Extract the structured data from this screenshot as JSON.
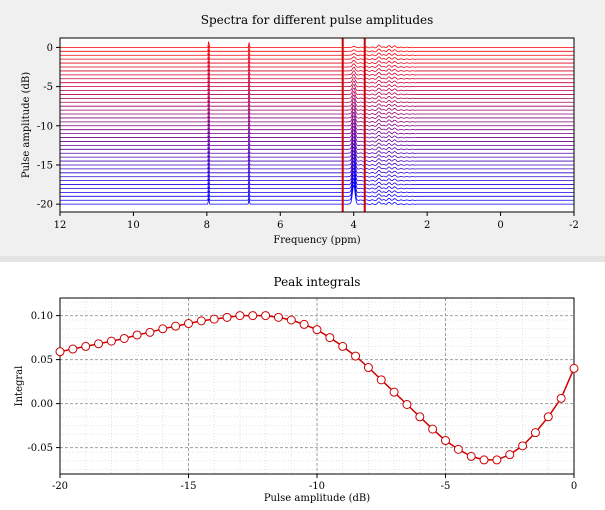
{
  "chart_data": [
    {
      "type": "line",
      "title": "Spectra for different pulse amplitudes",
      "xlabel": "Frequency (ppm)",
      "ylabel": "Pulse amplitude (dB)",
      "xlim": [
        12,
        -2
      ],
      "ylim": [
        -21,
        1.2
      ],
      "x_reversed": true,
      "xticks": [
        12,
        10,
        8,
        6,
        4,
        2,
        0,
        -2
      ],
      "yticks": [
        0,
        -5,
        -10,
        -15,
        -20
      ],
      "trace_offsets_db": [
        0,
        -0.5,
        -1,
        -1.5,
        -2,
        -2.5,
        -3,
        -3.5,
        -4,
        -4.5,
        -5,
        -5.5,
        -6,
        -6.5,
        -7,
        -7.5,
        -8,
        -8.5,
        -9,
        -9.5,
        -10,
        -10.5,
        -11,
        -11.5,
        -12,
        -12.5,
        -13,
        -13.5,
        -14,
        -14.5,
        -15,
        -15.5,
        -16,
        -16.5,
        -17,
        -17.5,
        -18,
        -18.5,
        -19,
        -19.5,
        -20
      ],
      "color_gradient": [
        "#ff0000",
        "#0000ff"
      ],
      "integration_region_ppm": [
        4.3,
        3.7
      ],
      "integration_region_color": "#cc0000",
      "peaks_ppm": [
        7.95,
        6.85,
        4.0,
        3.3,
        3.05,
        2.9
      ],
      "grid": false
    },
    {
      "type": "line",
      "title": "Peak integrals",
      "xlabel": "Pulse amplitude (dB)",
      "ylabel": "Integral",
      "xlim": [
        -20,
        0
      ],
      "ylim": [
        -0.08,
        0.12
      ],
      "xticks": [
        -20,
        -15,
        -10,
        -5,
        0
      ],
      "yticks": [
        0.1,
        0.05,
        0.0,
        -0.05
      ],
      "ytick_labels": [
        "0.10",
        "0.05",
        "0.00",
        "-0.05"
      ],
      "grid": true,
      "line_color": "#cc0000",
      "series": [
        {
          "x": [
            -20,
            -19.5,
            -19,
            -18.5,
            -18,
            -17.5,
            -17,
            -16.5,
            -16,
            -15.5,
            -15,
            -14.5,
            -14,
            -13.5,
            -13,
            -12.5,
            -12,
            -11.5,
            -11,
            -10.5,
            -10,
            -9.5,
            -9,
            -8.5,
            -8,
            -7.5,
            -7,
            -6.5,
            -6,
            -5.5,
            -5,
            -4.5,
            -4,
            -3.5,
            -3,
            -2.5,
            -2,
            -1.5,
            -1,
            -0.5,
            0
          ],
          "values": [
            0.059,
            0.062,
            0.065,
            0.068,
            0.071,
            0.074,
            0.078,
            0.081,
            0.085,
            0.088,
            0.091,
            0.094,
            0.096,
            0.098,
            0.1,
            0.1,
            0.1,
            0.098,
            0.095,
            0.09,
            0.084,
            0.075,
            0.065,
            0.054,
            0.041,
            0.027,
            0.013,
            -0.001,
            -0.015,
            -0.029,
            -0.042,
            -0.052,
            -0.06,
            -0.064,
            -0.064,
            -0.058,
            -0.048,
            -0.033,
            -0.015,
            0.006,
            0.04
          ]
        }
      ]
    }
  ]
}
